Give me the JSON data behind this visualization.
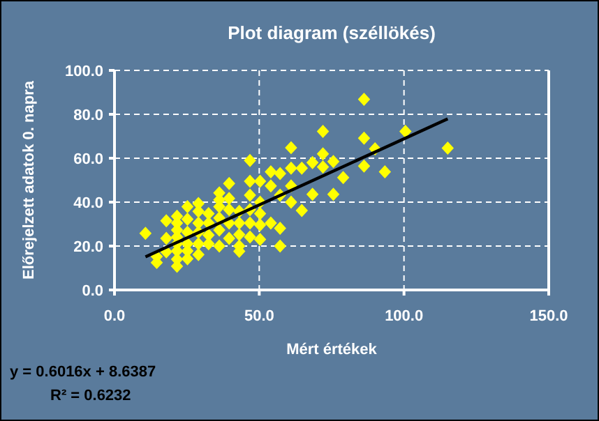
{
  "chart_data": {
    "type": "scatter",
    "title": "Plot diagram (széllökés)",
    "xlabel": "Mért értékek",
    "ylabel": "Előrejelzett adatok 0. napra",
    "xlim": [
      0,
      150
    ],
    "xticks": [
      {
        "value": 0,
        "label": "0.0"
      },
      {
        "value": 50,
        "label": "50.0"
      },
      {
        "value": 100,
        "label": "100.0"
      },
      {
        "value": 150,
        "label": "150.0"
      }
    ],
    "ylim": [
      0,
      100
    ],
    "yticks": [
      {
        "value": 0,
        "label": "0.0"
      },
      {
        "value": 20,
        "label": "20.0"
      },
      {
        "value": 40,
        "label": "40.0"
      },
      {
        "value": 60,
        "label": "60.0"
      },
      {
        "value": 80,
        "label": "80.0"
      },
      {
        "value": 100,
        "label": "100.0"
      }
    ],
    "grid": true,
    "annotations": [
      "y = 0.6016x + 8.6387",
      "R² = 0.6232"
    ],
    "series": [
      {
        "marker": "diamond",
        "color": "#ffff00",
        "x": [
          10.7,
          14.6,
          14.6,
          17.9,
          17.9,
          17.9,
          21.6,
          21.6,
          21.6,
          21.6,
          21.6,
          21.6,
          21.6,
          21.6,
          25.2,
          25.2,
          25.2,
          25.2,
          25.2,
          25.2,
          29,
          29,
          29,
          29,
          29,
          29,
          32.5,
          32.5,
          32.5,
          32.5,
          36.2,
          36.2,
          36.2,
          36.2,
          36.2,
          36.2,
          39.6,
          39.6,
          39.6,
          39.6,
          39.6,
          43.1,
          43.1,
          43.1,
          43.1,
          43.1,
          46.8,
          46.8,
          46.8,
          46.8,
          46.8,
          46.8,
          50.3,
          50.3,
          50.3,
          50.3,
          50.3,
          54,
          54,
          54,
          57.2,
          57.2,
          57.2,
          57.2,
          61,
          61,
          61,
          61,
          64.7,
          64.7,
          68.4,
          68.4,
          72,
          72,
          72,
          75.6,
          75.6,
          79,
          86.2,
          86.2,
          86.2,
          90,
          93.4,
          100.5,
          115.1
        ],
        "values": [
          25.8,
          15.2,
          12.5,
          31.5,
          23.5,
          17.4,
          33.6,
          30.5,
          27.3,
          24.1,
          21,
          17.8,
          14,
          10.8,
          37.9,
          32.2,
          26.3,
          21,
          17.8,
          14.2,
          39.4,
          35.8,
          30.5,
          26.3,
          21,
          16.1,
          34.8,
          30.5,
          25,
          21,
          44.2,
          41,
          37.9,
          32.8,
          27.3,
          20,
          48.5,
          41.7,
          36.6,
          30.5,
          23.5,
          35.8,
          30.5,
          25.2,
          20,
          17.6,
          59,
          49.5,
          43.2,
          36.6,
          30.5,
          24.1,
          49.5,
          40,
          34.8,
          29.6,
          23,
          53.8,
          47.4,
          30.5,
          53,
          43.2,
          28.1,
          20,
          64.8,
          55.5,
          47.4,
          40,
          55.5,
          36.2,
          58,
          43.6,
          72.2,
          62,
          56,
          58.5,
          43.6,
          51.2,
          86.8,
          69.1,
          56.4,
          64.3,
          53.8,
          72.2,
          64.6
        ]
      },
      {
        "type": "line",
        "color": "#000000",
        "x": [
          10.7,
          115.1
        ],
        "values": [
          15.1,
          77.9
        ]
      }
    ]
  }
}
